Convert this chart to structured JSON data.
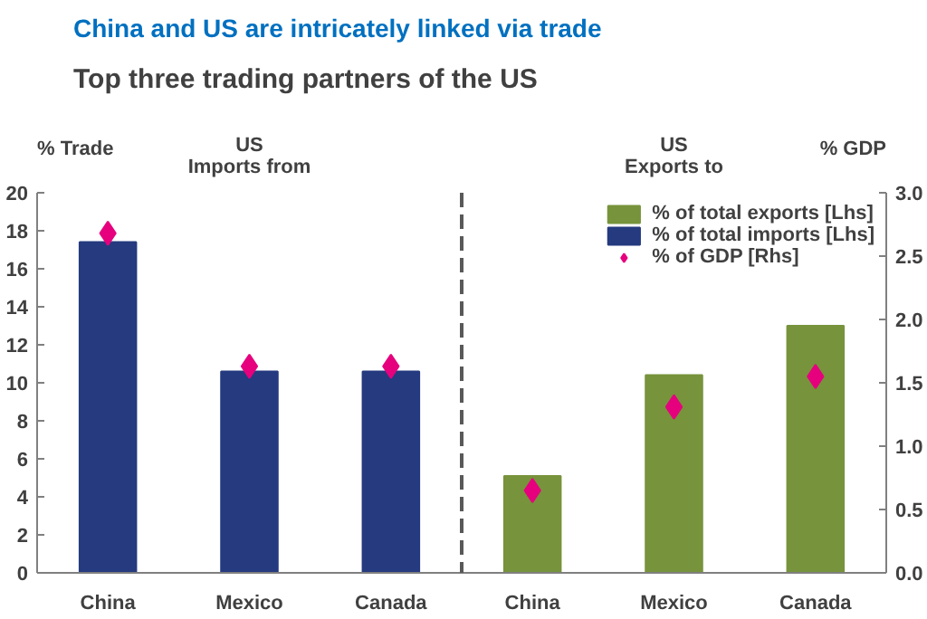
{
  "chart_data": {
    "type": "bar",
    "title": "China and US are intricately linked via trade",
    "subtitle": "Top three trading partners of the US",
    "ylabel": "% Trade",
    "y2label": "% GDP",
    "categories": [
      "China",
      "Mexico",
      "Canada",
      "China",
      "Mexico",
      "Canada"
    ],
    "series": [
      {
        "name": "% of total exports [Lhs]",
        "color": "#77933c",
        "values": [
          null,
          null,
          null,
          5.1,
          10.4,
          13.0
        ]
      },
      {
        "name": "% of total imports [Lhs]",
        "color": "#253a7f",
        "values": [
          17.4,
          10.6,
          10.6,
          null,
          null,
          null
        ]
      },
      {
        "name": "% of GDP [Rhs]",
        "type": "scatter",
        "axis": "y2",
        "marker": "diamond",
        "color": "#e6007e",
        "values": [
          2.68,
          1.63,
          1.63,
          0.65,
          1.31,
          1.55
        ]
      }
    ],
    "annotations": [
      "US\nImports from",
      "US\nExports to"
    ],
    "ylim": [
      0,
      20
    ],
    "yticks": [
      0,
      2,
      4,
      6,
      8,
      10,
      12,
      14,
      16,
      18,
      20
    ],
    "y2lim": [
      0,
      3
    ],
    "y2ticks": [
      {
        "value": 0,
        "label": "0.0"
      },
      {
        "value": 0.5,
        "label": "0.5"
      },
      {
        "value": 1,
        "label": "1.0"
      },
      {
        "value": 1.5,
        "label": "1.5"
      },
      {
        "value": 2,
        "label": "2.0"
      },
      {
        "value": 2.5,
        "label": "2.5"
      },
      {
        "value": 3,
        "label": "3.0"
      }
    ],
    "grid": false,
    "legend": "top right"
  }
}
